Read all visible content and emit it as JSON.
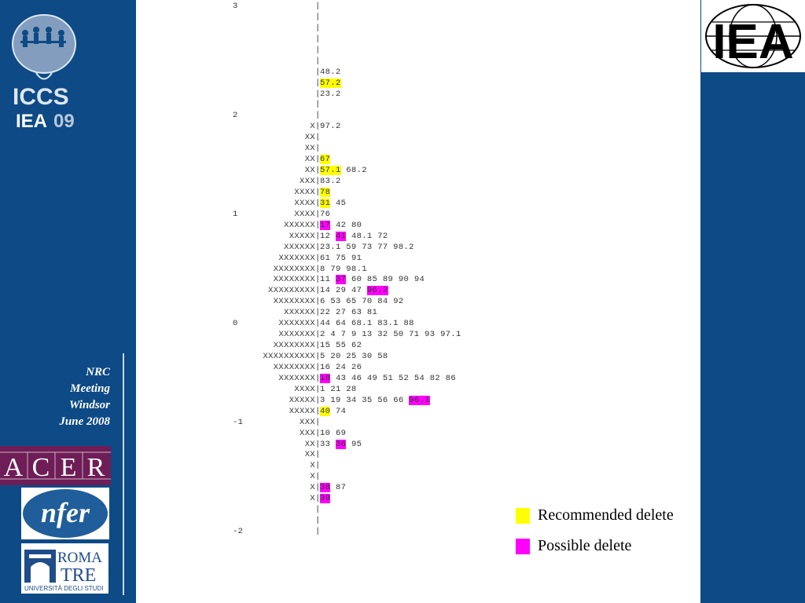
{
  "colors": {
    "sidebar": "#0d4a86",
    "recommended_highlight": "#ffff00",
    "possible_highlight": "#ff00ff"
  },
  "sidebar": {
    "logo_text_1": "ICCS",
    "logo_text_2": "IEA",
    "logo_text_3": "09",
    "meeting_lines": [
      "NRC",
      "Meeting",
      "Windsor",
      "June 2008"
    ]
  },
  "logos": {
    "iea": "IEA",
    "acer": [
      "A",
      "C",
      "E",
      "R"
    ],
    "nfer": "nfer",
    "roma_line1": "ROMA",
    "roma_line2": "TRE",
    "roma_line3": "UNIVERSITÀ DEGLI STUDI"
  },
  "map_rows": [
    {
      "label": "3",
      "xs": "",
      "items": []
    },
    {
      "label": "",
      "xs": "",
      "items": []
    },
    {
      "label": "",
      "xs": "",
      "items": []
    },
    {
      "label": "",
      "xs": "",
      "items": []
    },
    {
      "label": "",
      "xs": "",
      "items": []
    },
    {
      "label": "",
      "xs": "",
      "items": []
    },
    {
      "label": "",
      "xs": "",
      "items": [
        {
          "t": "48.2"
        }
      ]
    },
    {
      "label": "",
      "xs": "",
      "items": [
        {
          "t": "57.2",
          "h": "y"
        }
      ]
    },
    {
      "label": "",
      "xs": "",
      "items": [
        {
          "t": "23.2"
        }
      ]
    },
    {
      "label": "",
      "xs": "",
      "items": []
    },
    {
      "label": "2",
      "xs": "",
      "items": []
    },
    {
      "label": "",
      "xs": "X",
      "items": [
        {
          "t": "97.2"
        }
      ]
    },
    {
      "label": "",
      "xs": "XX",
      "items": []
    },
    {
      "label": "",
      "xs": "XX",
      "items": []
    },
    {
      "label": "",
      "xs": "XX",
      "items": [
        {
          "t": "67",
          "h": "y"
        }
      ]
    },
    {
      "label": "",
      "xs": "XX",
      "items": [
        {
          "t": "57.1",
          "h": "y"
        },
        {
          "t": "68.2"
        }
      ]
    },
    {
      "label": "",
      "xs": "XXX",
      "items": [
        {
          "t": "83.2"
        }
      ]
    },
    {
      "label": "",
      "xs": "XXXX",
      "items": [
        {
          "t": "78",
          "h": "y"
        }
      ]
    },
    {
      "label": "",
      "xs": "XXXX",
      "items": [
        {
          "t": "31",
          "h": "y"
        },
        {
          "t": "45"
        }
      ]
    },
    {
      "label": "1",
      "xs": "XXXX",
      "items": [
        {
          "t": "76"
        }
      ]
    },
    {
      "label": "",
      "xs": "XXXXXX",
      "items": [
        {
          "t": "17",
          "h": "m"
        },
        {
          "t": "42"
        },
        {
          "t": "80"
        }
      ]
    },
    {
      "label": "",
      "xs": "XXXXX",
      "items": [
        {
          "t": "12"
        },
        {
          "t": "41",
          "h": "m"
        },
        {
          "t": "48.1"
        },
        {
          "t": "72"
        }
      ]
    },
    {
      "label": "",
      "xs": "XXXXXX",
      "items": [
        {
          "t": "23.1"
        },
        {
          "t": "59"
        },
        {
          "t": "73"
        },
        {
          "t": "77"
        },
        {
          "t": "98.2"
        }
      ]
    },
    {
      "label": "",
      "xs": "XXXXXXX",
      "items": [
        {
          "t": "61"
        },
        {
          "t": "75"
        },
        {
          "t": "91"
        }
      ]
    },
    {
      "label": "",
      "xs": "XXXXXXXX",
      "items": [
        {
          "t": "8"
        },
        {
          "t": "79"
        },
        {
          "t": "98.1"
        }
      ]
    },
    {
      "label": "",
      "xs": "XXXXXXXX",
      "items": [
        {
          "t": "11"
        },
        {
          "t": "37",
          "h": "m"
        },
        {
          "t": "60"
        },
        {
          "t": "85"
        },
        {
          "t": "89"
        },
        {
          "t": "90"
        },
        {
          "t": "94"
        }
      ]
    },
    {
      "label": "",
      "xs": "XXXXXXXXX",
      "items": [
        {
          "t": "14"
        },
        {
          "t": "29"
        },
        {
          "t": "47"
        },
        {
          "t": "96.2",
          "h": "m"
        }
      ]
    },
    {
      "label": "",
      "xs": "XXXXXXXX",
      "items": [
        {
          "t": "6"
        },
        {
          "t": "53"
        },
        {
          "t": "65"
        },
        {
          "t": "70"
        },
        {
          "t": "84"
        },
        {
          "t": "92"
        }
      ]
    },
    {
      "label": "",
      "xs": "XXXXXX",
      "items": [
        {
          "t": "22"
        },
        {
          "t": "27"
        },
        {
          "t": "63"
        },
        {
          "t": "81"
        }
      ]
    },
    {
      "label": "0",
      "xs": "XXXXXXX",
      "items": [
        {
          "t": "44"
        },
        {
          "t": "64"
        },
        {
          "t": "68.1"
        },
        {
          "t": "83.1"
        },
        {
          "t": "88"
        }
      ]
    },
    {
      "label": "",
      "xs": "XXXXXXX",
      "items": [
        {
          "t": "2"
        },
        {
          "t": "4"
        },
        {
          "t": "7"
        },
        {
          "t": "9"
        },
        {
          "t": "13"
        },
        {
          "t": "32"
        },
        {
          "t": "50"
        },
        {
          "t": "71"
        },
        {
          "t": "93"
        },
        {
          "t": "97.1"
        }
      ]
    },
    {
      "label": "",
      "xs": "XXXXXXXX",
      "items": [
        {
          "t": "15"
        },
        {
          "t": "55"
        },
        {
          "t": "62"
        }
      ]
    },
    {
      "label": "",
      "xs": "XXXXXXXXXX",
      "items": [
        {
          "t": "5"
        },
        {
          "t": "20"
        },
        {
          "t": "25"
        },
        {
          "t": "30"
        },
        {
          "t": "58"
        }
      ]
    },
    {
      "label": "",
      "xs": "XXXXXXXX",
      "items": [
        {
          "t": "16"
        },
        {
          "t": "24"
        },
        {
          "t": "26"
        }
      ]
    },
    {
      "label": "",
      "xs": "XXXXXXX",
      "items": [
        {
          "t": "18",
          "h": "m"
        },
        {
          "t": "43"
        },
        {
          "t": "46"
        },
        {
          "t": "49"
        },
        {
          "t": "51"
        },
        {
          "t": "52"
        },
        {
          "t": "54"
        },
        {
          "t": "82"
        },
        {
          "t": "86"
        }
      ]
    },
    {
      "label": "",
      "xs": "XXXX",
      "items": [
        {
          "t": "1"
        },
        {
          "t": "21"
        },
        {
          "t": "28"
        }
      ]
    },
    {
      "label": "",
      "xs": "XXXXX",
      "items": [
        {
          "t": "3"
        },
        {
          "t": "19"
        },
        {
          "t": "34"
        },
        {
          "t": "35"
        },
        {
          "t": "56"
        },
        {
          "t": "66"
        },
        {
          "t": "96.1",
          "h": "m"
        }
      ]
    },
    {
      "label": "",
      "xs": "XXXXX",
      "items": [
        {
          "t": "40",
          "h": "y"
        },
        {
          "t": "74"
        }
      ]
    },
    {
      "label": "-1",
      "xs": "XXX",
      "items": []
    },
    {
      "label": "",
      "xs": "XXX",
      "items": [
        {
          "t": "10"
        },
        {
          "t": "69"
        }
      ]
    },
    {
      "label": "",
      "xs": "XX",
      "items": [
        {
          "t": "33"
        },
        {
          "t": "36",
          "h": "m"
        },
        {
          "t": "95"
        }
      ]
    },
    {
      "label": "",
      "xs": "XX",
      "items": []
    },
    {
      "label": "",
      "xs": "X",
      "items": []
    },
    {
      "label": "",
      "xs": "X",
      "items": []
    },
    {
      "label": "",
      "xs": "X",
      "items": [
        {
          "t": "38",
          "h": "m"
        },
        {
          "t": "87"
        }
      ]
    },
    {
      "label": "",
      "xs": "X",
      "items": [
        {
          "t": "39",
          "h": "m"
        }
      ]
    },
    {
      "label": "",
      "xs": "",
      "items": []
    },
    {
      "label": "",
      "xs": "",
      "items": []
    },
    {
      "label": "-2",
      "xs": "",
      "items": []
    }
  ],
  "legend": {
    "recommended": "Recommended delete",
    "possible": "Possible delete"
  }
}
